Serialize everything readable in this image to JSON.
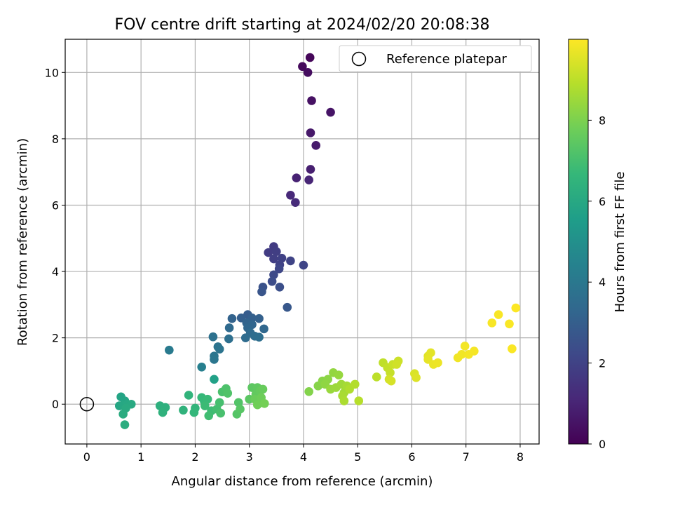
{
  "chart_data": {
    "type": "scatter",
    "title": "FOV centre drift starting at 2024/02/20 20:08:38",
    "xlabel": "Angular distance from reference (arcmin)",
    "ylabel": "Rotation from reference (arcmin)",
    "xlim": [
      -0.4,
      8.35
    ],
    "ylim": [
      -1.2,
      11.0
    ],
    "xticks": [
      0,
      1,
      2,
      3,
      4,
      5,
      6,
      7,
      8
    ],
    "yticks": [
      0,
      2,
      4,
      6,
      8,
      10
    ],
    "grid": true,
    "legend": {
      "placement": "top-right",
      "label": "Reference platepar"
    },
    "reference": {
      "x": 0,
      "y": 0
    },
    "colorbar": {
      "label": "Hours from first FF file",
      "range": [
        0,
        10
      ],
      "ticks": [
        0,
        2,
        4,
        6,
        8
      ],
      "colormap": "viridis"
    },
    "colormap_stops": [
      "#440154",
      "#482878",
      "#3e4989",
      "#31688e",
      "#26828e",
      "#1f9e89",
      "#35b779",
      "#6ece58",
      "#b5de2b",
      "#fde725"
    ],
    "points": [
      {
        "x": 4.12,
        "y": 10.45,
        "h": 0.15
      },
      {
        "x": 3.98,
        "y": 10.18,
        "h": 0.25
      },
      {
        "x": 4.08,
        "y": 10.0,
        "h": 0.35
      },
      {
        "x": 4.15,
        "y": 9.15,
        "h": 0.45
      },
      {
        "x": 4.5,
        "y": 8.8,
        "h": 0.55
      },
      {
        "x": 4.13,
        "y": 8.18,
        "h": 0.65
      },
      {
        "x": 4.23,
        "y": 7.8,
        "h": 0.75
      },
      {
        "x": 4.13,
        "y": 7.08,
        "h": 0.85
      },
      {
        "x": 3.87,
        "y": 6.82,
        "h": 0.95
      },
      {
        "x": 4.1,
        "y": 6.76,
        "h": 1.05
      },
      {
        "x": 3.76,
        "y": 6.3,
        "h": 1.15
      },
      {
        "x": 3.85,
        "y": 6.08,
        "h": 1.25
      },
      {
        "x": 3.45,
        "y": 4.75,
        "h": 1.75
      },
      {
        "x": 3.35,
        "y": 4.57,
        "h": 1.8
      },
      {
        "x": 3.5,
        "y": 4.6,
        "h": 1.85
      },
      {
        "x": 3.45,
        "y": 4.38,
        "h": 1.9
      },
      {
        "x": 3.6,
        "y": 4.4,
        "h": 1.95
      },
      {
        "x": 3.56,
        "y": 4.2,
        "h": 2.0
      },
      {
        "x": 3.76,
        "y": 4.32,
        "h": 2.05
      },
      {
        "x": 4.0,
        "y": 4.19,
        "h": 2.1
      },
      {
        "x": 3.55,
        "y": 4.08,
        "h": 2.15
      },
      {
        "x": 3.45,
        "y": 3.9,
        "h": 2.25
      },
      {
        "x": 3.42,
        "y": 3.7,
        "h": 2.35
      },
      {
        "x": 3.56,
        "y": 3.53,
        "h": 2.45
      },
      {
        "x": 3.25,
        "y": 3.53,
        "h": 2.55
      },
      {
        "x": 3.23,
        "y": 3.39,
        "h": 2.65
      },
      {
        "x": 3.7,
        "y": 2.92,
        "h": 2.75
      },
      {
        "x": 2.97,
        "y": 2.7,
        "h": 2.9
      },
      {
        "x": 2.85,
        "y": 2.6,
        "h": 3.0
      },
      {
        "x": 3.05,
        "y": 2.6,
        "h": 3.05
      },
      {
        "x": 3.18,
        "y": 2.58,
        "h": 3.1
      },
      {
        "x": 2.68,
        "y": 2.58,
        "h": 3.15
      },
      {
        "x": 2.95,
        "y": 2.45,
        "h": 3.2
      },
      {
        "x": 3.05,
        "y": 2.4,
        "h": 3.25
      },
      {
        "x": 2.97,
        "y": 2.3,
        "h": 3.3
      },
      {
        "x": 3.27,
        "y": 2.27,
        "h": 3.35
      },
      {
        "x": 2.63,
        "y": 2.3,
        "h": 3.4
      },
      {
        "x": 3.02,
        "y": 2.15,
        "h": 3.45
      },
      {
        "x": 2.93,
        "y": 2.0,
        "h": 3.5
      },
      {
        "x": 3.1,
        "y": 2.05,
        "h": 3.55
      },
      {
        "x": 3.18,
        "y": 2.02,
        "h": 3.6
      },
      {
        "x": 2.62,
        "y": 1.97,
        "h": 3.65
      },
      {
        "x": 2.33,
        "y": 2.03,
        "h": 3.7
      },
      {
        "x": 2.42,
        "y": 1.73,
        "h": 3.8
      },
      {
        "x": 2.45,
        "y": 1.66,
        "h": 3.85
      },
      {
        "x": 2.35,
        "y": 1.45,
        "h": 3.9
      },
      {
        "x": 2.35,
        "y": 1.35,
        "h": 3.95
      },
      {
        "x": 1.52,
        "y": 1.63,
        "h": 4.1
      },
      {
        "x": 2.12,
        "y": 1.12,
        "h": 4.3
      },
      {
        "x": 2.35,
        "y": 0.75,
        "h": 5.7
      },
      {
        "x": 0.63,
        "y": 0.22,
        "h": 5.8
      },
      {
        "x": 0.7,
        "y": 0.1,
        "h": 5.85
      },
      {
        "x": 0.6,
        "y": -0.05,
        "h": 5.9
      },
      {
        "x": 0.68,
        "y": -0.02,
        "h": 5.95
      },
      {
        "x": 0.75,
        "y": 0.0,
        "h": 6.0
      },
      {
        "x": 0.82,
        "y": 0.0,
        "h": 6.05
      },
      {
        "x": 0.72,
        "y": -0.12,
        "h": 6.1
      },
      {
        "x": 0.67,
        "y": -0.3,
        "h": 6.15
      },
      {
        "x": 0.7,
        "y": -0.62,
        "h": 6.2
      },
      {
        "x": 1.35,
        "y": -0.05,
        "h": 6.3
      },
      {
        "x": 1.45,
        "y": -0.1,
        "h": 6.35
      },
      {
        "x": 1.4,
        "y": -0.25,
        "h": 6.4
      },
      {
        "x": 1.78,
        "y": -0.18,
        "h": 6.45
      },
      {
        "x": 1.88,
        "y": 0.27,
        "h": 6.5
      },
      {
        "x": 2.0,
        "y": -0.12,
        "h": 6.55
      },
      {
        "x": 1.98,
        "y": -0.25,
        "h": 6.6
      },
      {
        "x": 2.12,
        "y": 0.2,
        "h": 6.65
      },
      {
        "x": 2.17,
        "y": 0.08,
        "h": 6.7
      },
      {
        "x": 2.23,
        "y": 0.15,
        "h": 6.75
      },
      {
        "x": 2.18,
        "y": -0.05,
        "h": 6.8
      },
      {
        "x": 2.3,
        "y": -0.2,
        "h": 6.85
      },
      {
        "x": 2.25,
        "y": -0.35,
        "h": 6.9
      },
      {
        "x": 2.4,
        "y": -0.15,
        "h": 6.95
      },
      {
        "x": 2.45,
        "y": 0.05,
        "h": 7.0
      },
      {
        "x": 2.47,
        "y": -0.27,
        "h": 7.05
      },
      {
        "x": 2.5,
        "y": 0.37,
        "h": 7.1
      },
      {
        "x": 2.57,
        "y": 0.47,
        "h": 7.15
      },
      {
        "x": 2.6,
        "y": 0.33,
        "h": 7.2
      },
      {
        "x": 2.8,
        "y": 0.05,
        "h": 7.25
      },
      {
        "x": 2.77,
        "y": -0.3,
        "h": 7.3
      },
      {
        "x": 2.83,
        "y": -0.15,
        "h": 7.35
      },
      {
        "x": 3.0,
        "y": 0.15,
        "h": 7.4
      },
      {
        "x": 3.05,
        "y": 0.5,
        "h": 7.45
      },
      {
        "x": 3.15,
        "y": 0.5,
        "h": 7.5
      },
      {
        "x": 3.12,
        "y": 0.3,
        "h": 7.55
      },
      {
        "x": 3.2,
        "y": 0.4,
        "h": 7.6
      },
      {
        "x": 3.25,
        "y": 0.45,
        "h": 7.65
      },
      {
        "x": 3.1,
        "y": 0.15,
        "h": 7.7
      },
      {
        "x": 3.22,
        "y": 0.2,
        "h": 7.75
      },
      {
        "x": 3.15,
        "y": -0.02,
        "h": 7.8
      },
      {
        "x": 3.28,
        "y": 0.02,
        "h": 7.85
      },
      {
        "x": 4.1,
        "y": 0.38,
        "h": 8.1
      },
      {
        "x": 4.27,
        "y": 0.55,
        "h": 8.15
      },
      {
        "x": 4.35,
        "y": 0.7,
        "h": 8.2
      },
      {
        "x": 4.45,
        "y": 0.75,
        "h": 8.25
      },
      {
        "x": 4.4,
        "y": 0.6,
        "h": 8.3
      },
      {
        "x": 4.55,
        "y": 0.95,
        "h": 8.35
      },
      {
        "x": 4.65,
        "y": 0.88,
        "h": 8.4
      },
      {
        "x": 4.5,
        "y": 0.45,
        "h": 8.45
      },
      {
        "x": 4.6,
        "y": 0.5,
        "h": 8.5
      },
      {
        "x": 4.7,
        "y": 0.6,
        "h": 8.55
      },
      {
        "x": 4.75,
        "y": 0.35,
        "h": 8.6
      },
      {
        "x": 4.8,
        "y": 0.55,
        "h": 8.65
      },
      {
        "x": 4.72,
        "y": 0.25,
        "h": 8.7
      },
      {
        "x": 4.75,
        "y": 0.1,
        "h": 8.75
      },
      {
        "x": 4.85,
        "y": 0.45,
        "h": 8.8
      },
      {
        "x": 4.95,
        "y": 0.6,
        "h": 8.85
      },
      {
        "x": 5.02,
        "y": 0.1,
        "h": 8.9
      },
      {
        "x": 5.35,
        "y": 0.82,
        "h": 9.0
      },
      {
        "x": 5.47,
        "y": 1.25,
        "h": 9.05
      },
      {
        "x": 5.55,
        "y": 1.1,
        "h": 9.1
      },
      {
        "x": 5.6,
        "y": 0.95,
        "h": 9.15
      },
      {
        "x": 5.65,
        "y": 1.2,
        "h": 9.2
      },
      {
        "x": 5.75,
        "y": 1.3,
        "h": 9.25
      },
      {
        "x": 5.72,
        "y": 1.2,
        "h": 9.3
      },
      {
        "x": 5.58,
        "y": 0.75,
        "h": 9.35
      },
      {
        "x": 5.62,
        "y": 0.7,
        "h": 9.4
      },
      {
        "x": 6.05,
        "y": 0.92,
        "h": 9.45
      },
      {
        "x": 6.08,
        "y": 0.8,
        "h": 9.5
      },
      {
        "x": 6.3,
        "y": 1.45,
        "h": 9.55
      },
      {
        "x": 6.35,
        "y": 1.55,
        "h": 9.6
      },
      {
        "x": 6.3,
        "y": 1.35,
        "h": 9.65
      },
      {
        "x": 6.4,
        "y": 1.2,
        "h": 9.7
      },
      {
        "x": 6.48,
        "y": 1.25,
        "h": 9.75
      },
      {
        "x": 6.85,
        "y": 1.4,
        "h": 9.8
      },
      {
        "x": 6.92,
        "y": 1.5,
        "h": 9.82
      },
      {
        "x": 6.98,
        "y": 1.75,
        "h": 9.84
      },
      {
        "x": 7.05,
        "y": 1.5,
        "h": 9.86
      },
      {
        "x": 7.15,
        "y": 1.6,
        "h": 9.88
      },
      {
        "x": 7.48,
        "y": 2.45,
        "h": 9.9
      },
      {
        "x": 7.6,
        "y": 2.7,
        "h": 9.92
      },
      {
        "x": 7.8,
        "y": 2.42,
        "h": 9.94
      },
      {
        "x": 7.85,
        "y": 1.67,
        "h": 9.96
      },
      {
        "x": 7.92,
        "y": 2.9,
        "h": 9.98
      }
    ]
  }
}
